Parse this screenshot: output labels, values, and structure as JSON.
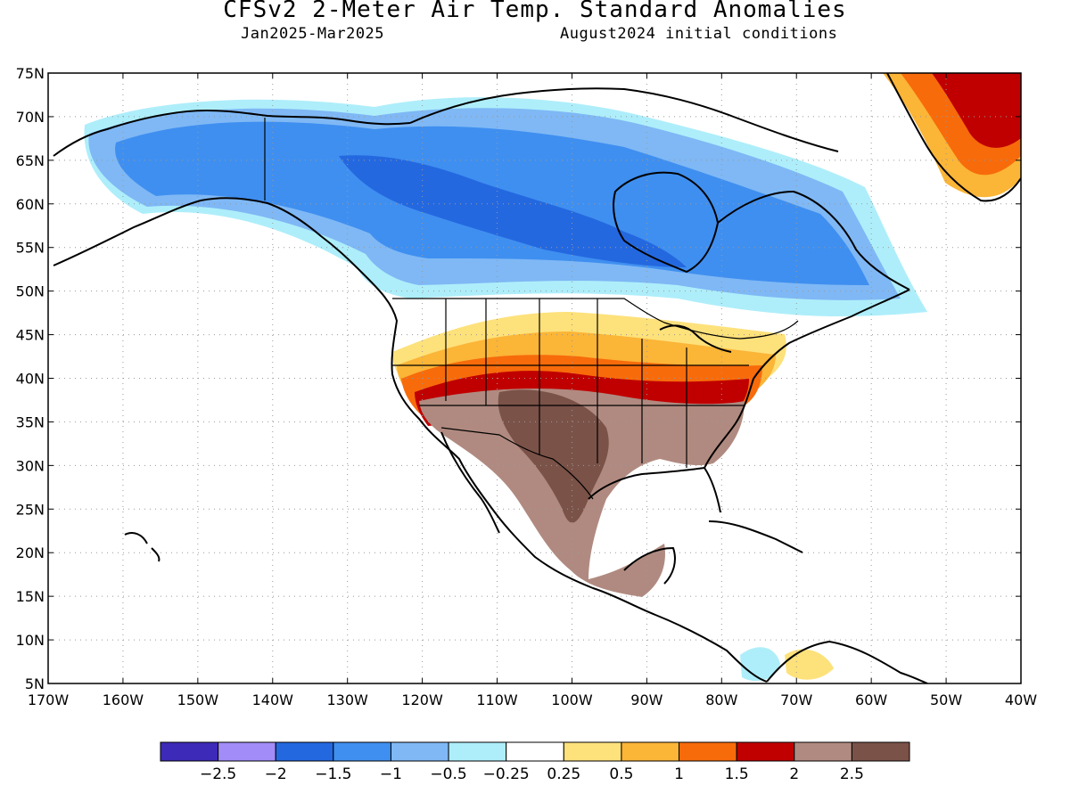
{
  "title": "CFSv2 2-Meter Air Temp. Standard Anomalies",
  "period": "Jan2025-Mar2025",
  "init": "August2024 initial conditions",
  "map": {
    "lon_range": [
      -170,
      -40
    ],
    "lat_range": [
      5,
      75
    ],
    "lon_ticks": [
      {
        "v": -170,
        "t": "170W"
      },
      {
        "v": -160,
        "t": "160W"
      },
      {
        "v": -150,
        "t": "150W"
      },
      {
        "v": -140,
        "t": "140W"
      },
      {
        "v": -130,
        "t": "130W"
      },
      {
        "v": -120,
        "t": "120W"
      },
      {
        "v": -110,
        "t": "110W"
      },
      {
        "v": -100,
        "t": "100W"
      },
      {
        "v": -90,
        "t": "90W"
      },
      {
        "v": -80,
        "t": "80W"
      },
      {
        "v": -70,
        "t": "70W"
      },
      {
        "v": -60,
        "t": "60W"
      },
      {
        "v": -50,
        "t": "50W"
      },
      {
        "v": -40,
        "t": "40W"
      }
    ],
    "lat_ticks": [
      {
        "v": 5,
        "t": "5N"
      },
      {
        "v": 10,
        "t": "10N"
      },
      {
        "v": 15,
        "t": "15N"
      },
      {
        "v": 20,
        "t": "20N"
      },
      {
        "v": 25,
        "t": "25N"
      },
      {
        "v": 30,
        "t": "30N"
      },
      {
        "v": 35,
        "t": "35N"
      },
      {
        "v": 40,
        "t": "40N"
      },
      {
        "v": 45,
        "t": "45N"
      },
      {
        "v": 50,
        "t": "50N"
      },
      {
        "v": 55,
        "t": "55N"
      },
      {
        "v": 60,
        "t": "60N"
      },
      {
        "v": 65,
        "t": "65N"
      },
      {
        "v": 70,
        "t": "70N"
      },
      {
        "v": 75,
        "t": "75N"
      }
    ]
  },
  "colorbar": {
    "colors": [
      "#3d2ab8",
      "#a28cf7",
      "#2468e0",
      "#3f8ff0",
      "#7fb8f5",
      "#aeeefa",
      "#ffffff",
      "#fde17b",
      "#fbb537",
      "#f76b0b",
      "#c00000",
      "#b08a80",
      "#7a5248"
    ],
    "labels": [
      "-2.5",
      "-2",
      "-1.5",
      "-1",
      "-0.5",
      "-0.25",
      "0.25",
      "0.5",
      "1",
      "1.5",
      "2",
      "2.5"
    ]
  }
}
